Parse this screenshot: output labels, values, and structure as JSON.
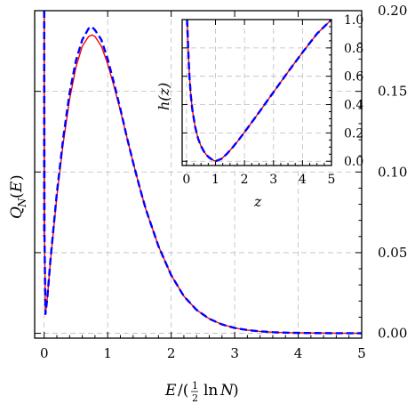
{
  "chart_data": [
    {
      "type": "line",
      "role": "main",
      "xlabel": "E/(½ ln N)",
      "ylabel": "Q_N(E)",
      "xlim": [
        -0.15,
        5
      ],
      "ylim": [
        -0.003,
        0.2
      ],
      "xticks": [
        0,
        1,
        2,
        3,
        4,
        5
      ],
      "xtick_labels": [
        "0",
        "1",
        "2",
        "3",
        "4",
        "5"
      ],
      "yticks": [
        0.0,
        0.05,
        0.1,
        0.15,
        0.2
      ],
      "ytick_labels": [
        "0.00",
        "0.05",
        "0.10",
        "0.15",
        "0.20"
      ],
      "y_axis_side": "right",
      "grid": true,
      "series": [
        {
          "style": "solid",
          "color": "#ff0000",
          "x": [
            0.0,
            0.005,
            0.02,
            0.05,
            0.1,
            0.2,
            0.3,
            0.4,
            0.5,
            0.6,
            0.7,
            0.75,
            0.8,
            0.9,
            1.0,
            1.1,
            1.2,
            1.3,
            1.4,
            1.5,
            1.6,
            1.8,
            2.0,
            2.2,
            2.4,
            2.6,
            2.8,
            3.0,
            3.2,
            3.4,
            3.6,
            3.8,
            4.0,
            4.5,
            5.0
          ],
          "y": [
            0.195,
            0.06,
            0.012,
            0.022,
            0.045,
            0.085,
            0.118,
            0.145,
            0.165,
            0.178,
            0.184,
            0.185,
            0.184,
            0.178,
            0.167,
            0.153,
            0.138,
            0.122,
            0.106,
            0.091,
            0.077,
            0.054,
            0.036,
            0.023,
            0.0145,
            0.009,
            0.0055,
            0.0033,
            0.002,
            0.0012,
            0.0007,
            0.0004,
            0.00025,
            0.0001,
            4e-05
          ]
        },
        {
          "style": "dashed",
          "color": "#0000ff",
          "x": [
            0.0,
            0.005,
            0.02,
            0.05,
            0.1,
            0.2,
            0.3,
            0.4,
            0.5,
            0.6,
            0.7,
            0.75,
            0.8,
            0.9,
            1.0,
            1.1,
            1.2,
            1.3,
            1.4,
            1.5,
            1.6,
            1.8,
            2.0,
            2.2,
            2.4,
            2.6,
            2.8,
            3.0,
            3.2,
            3.4,
            3.6,
            3.8,
            4.0,
            4.5,
            5.0
          ],
          "y": [
            0.2,
            0.06,
            0.012,
            0.022,
            0.046,
            0.087,
            0.121,
            0.149,
            0.169,
            0.182,
            0.189,
            0.19,
            0.188,
            0.182,
            0.17,
            0.155,
            0.139,
            0.122,
            0.106,
            0.091,
            0.077,
            0.054,
            0.036,
            0.023,
            0.0145,
            0.009,
            0.0055,
            0.0033,
            0.002,
            0.0012,
            0.0007,
            0.0004,
            0.00025,
            0.0001,
            4e-05
          ]
        }
      ]
    },
    {
      "type": "line",
      "role": "inset",
      "xlabel": "z",
      "ylabel": "h(z)",
      "xlim": [
        -0.15,
        5
      ],
      "ylim": [
        -0.03,
        1.0
      ],
      "xticks": [
        0,
        1,
        2,
        3,
        4,
        5
      ],
      "xtick_labels": [
        "0",
        "1",
        "2",
        "3",
        "4",
        "5"
      ],
      "yticks": [
        0.0,
        0.2,
        0.4,
        0.6,
        0.8,
        1.0
      ],
      "ytick_labels": [
        "0.0",
        "0.2",
        "0.4",
        "0.6",
        "0.8",
        "1.0"
      ],
      "y_axis_side": "right",
      "grid": true,
      "series": [
        {
          "style": "solid",
          "color": "#ff0000",
          "x": [
            0.02,
            0.04,
            0.06,
            0.1,
            0.15,
            0.2,
            0.3,
            0.4,
            0.5,
            0.6,
            0.7,
            0.8,
            0.9,
            1.0,
            1.2,
            1.4,
            1.6,
            1.8,
            2.0,
            2.5,
            3.0,
            3.5,
            4.0,
            4.5,
            5.0
          ],
          "y": [
            1.0,
            0.9,
            0.78,
            0.6,
            0.46,
            0.365,
            0.24,
            0.16,
            0.107,
            0.069,
            0.042,
            0.023,
            0.01,
            0.0,
            0.016,
            0.054,
            0.1,
            0.151,
            0.205,
            0.345,
            0.488,
            0.63,
            0.768,
            0.9,
            1.03
          ]
        },
        {
          "style": "dashed",
          "color": "#0000ff",
          "x": [
            0.02,
            0.04,
            0.06,
            0.1,
            0.15,
            0.2,
            0.3,
            0.4,
            0.5,
            0.6,
            0.7,
            0.8,
            0.9,
            1.0,
            1.2,
            1.4,
            1.6,
            1.8,
            2.0,
            2.5,
            3.0,
            3.5,
            4.0,
            4.5,
            5.0
          ],
          "y": [
            1.0,
            0.9,
            0.78,
            0.6,
            0.46,
            0.365,
            0.24,
            0.16,
            0.107,
            0.069,
            0.042,
            0.023,
            0.01,
            0.0,
            0.016,
            0.054,
            0.1,
            0.151,
            0.205,
            0.345,
            0.488,
            0.63,
            0.768,
            0.9,
            1.03
          ]
        }
      ]
    }
  ]
}
